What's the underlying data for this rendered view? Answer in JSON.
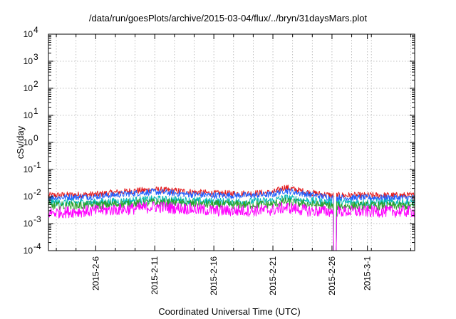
{
  "chart_data": {
    "type": "line",
    "title": "/data/run/goesPlots/archive/2015-03-04/flux/../bryn/31daysMars.plot",
    "xlabel": "Coordinated Universal Time (UTC)",
    "ylabel": "cSv/day",
    "yscale": "log",
    "ylim": [
      0.0001,
      10000
    ],
    "xlim": [
      "2015-02-02",
      "2015-03-05"
    ],
    "yticks": [
      {
        "value": 0.0001,
        "base": "10",
        "exp": "-4"
      },
      {
        "value": 0.001,
        "base": "10",
        "exp": "-3"
      },
      {
        "value": 0.01,
        "base": "10",
        "exp": "-2"
      },
      {
        "value": 0.1,
        "base": "10",
        "exp": "-1"
      },
      {
        "value": 1,
        "base": "10",
        "exp": "0"
      },
      {
        "value": 10,
        "base": "10",
        "exp": "1"
      },
      {
        "value": 100,
        "base": "10",
        "exp": "2"
      },
      {
        "value": 1000,
        "base": "10",
        "exp": "3"
      },
      {
        "value": 10000,
        "base": "10",
        "exp": "4"
      }
    ],
    "xticks": [
      {
        "value": "2015-02-06",
        "label": "2015-2-6"
      },
      {
        "value": "2015-02-11",
        "label": "2015-2-11"
      },
      {
        "value": "2015-02-16",
        "label": "2015-2-16"
      },
      {
        "value": "2015-02-21",
        "label": "2015-2-21"
      },
      {
        "value": "2015-02-26",
        "label": "2015-2-26"
      },
      {
        "value": "2015-03-01",
        "label": "2015-3-1"
      }
    ],
    "x_minor_per_major": 2,
    "grid": true,
    "legend": "none",
    "series": [
      {
        "color": "#e41a1c",
        "x": [
          "2015-02-02",
          "2015-02-06",
          "2015-02-09",
          "2015-02-11",
          "2015-02-14",
          "2015-02-16",
          "2015-02-19",
          "2015-02-21",
          "2015-02-22",
          "2015-02-24",
          "2015-02-26",
          "2015-02-27",
          "2015-03-01",
          "2015-03-05"
        ],
        "values": [
          0.011,
          0.012,
          0.016,
          0.018,
          0.015,
          0.013,
          0.013,
          0.014,
          0.022,
          0.014,
          0.011,
          0.011,
          0.011,
          0.011
        ]
      },
      {
        "color": "#1f5fff",
        "x": [
          "2015-02-02",
          "2015-02-06",
          "2015-02-09",
          "2015-02-11",
          "2015-02-14",
          "2015-02-16",
          "2015-02-19",
          "2015-02-21",
          "2015-02-22",
          "2015-02-24",
          "2015-02-26",
          "2015-02-27",
          "2015-03-01",
          "2015-03-05"
        ],
        "values": [
          0.009,
          0.01,
          0.013,
          0.015,
          0.012,
          0.011,
          0.011,
          0.012,
          0.017,
          0.012,
          0.009,
          0.009,
          0.009,
          0.009
        ]
      },
      {
        "color": "#00b8b8",
        "x": [
          "2015-02-02",
          "2015-02-06",
          "2015-02-09",
          "2015-02-11",
          "2015-02-14",
          "2015-02-16",
          "2015-02-19",
          "2015-02-21",
          "2015-02-22",
          "2015-02-24",
          "2015-02-26",
          "2015-02-27",
          "2015-03-01",
          "2015-03-05"
        ],
        "values": [
          0.006,
          0.006,
          0.007,
          0.008,
          0.007,
          0.0065,
          0.0065,
          0.007,
          0.009,
          0.007,
          0.006,
          0.006,
          0.006,
          0.006
        ]
      },
      {
        "color": "#2ca02c",
        "x": [
          "2015-02-02",
          "2015-02-06",
          "2015-02-09",
          "2015-02-11",
          "2015-02-14",
          "2015-02-16",
          "2015-02-19",
          "2015-02-21",
          "2015-02-22",
          "2015-02-24",
          "2015-02-26",
          "2015-02-27",
          "2015-03-01",
          "2015-03-05"
        ],
        "values": [
          0.0045,
          0.0048,
          0.0055,
          0.006,
          0.0055,
          0.005,
          0.005,
          0.0052,
          0.0065,
          0.0052,
          0.0045,
          0.0045,
          0.0045,
          0.0045
        ]
      },
      {
        "color": "#ff00ff",
        "x": [
          "2015-02-02",
          "2015-02-06",
          "2015-02-09",
          "2015-02-11",
          "2015-02-14",
          "2015-02-16",
          "2015-02-19",
          "2015-02-21",
          "2015-02-22",
          "2015-02-24",
          "2015-02-26",
          "2015-02-27",
          "2015-03-01",
          "2015-03-05"
        ],
        "values": [
          0.0025,
          0.003,
          0.0035,
          0.0042,
          0.0035,
          0.003,
          0.003,
          0.0032,
          0.004,
          0.003,
          0.0028,
          0.0028,
          0.0028,
          0.0028
        ]
      }
    ],
    "gap": {
      "from": "2015-02-26",
      "to": "2015-02-27",
      "min_value": 0.0001
    }
  }
}
